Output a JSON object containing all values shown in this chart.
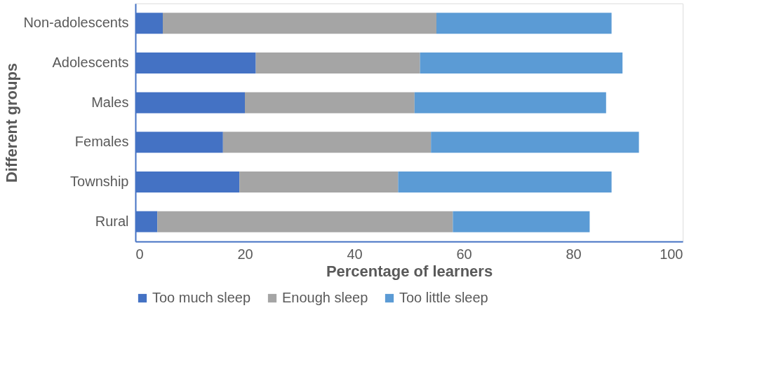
{
  "chart_data": {
    "type": "bar",
    "orientation": "horizontal",
    "stacked": true,
    "xlabel": "Percentage of learners",
    "ylabel": "Different groups",
    "categories": [
      "Non-adolescents",
      "Adolescents",
      "Males",
      "Females",
      "Township",
      "Rural"
    ],
    "series": [
      {
        "name": "Too much sleep",
        "color": "#4472c4",
        "values": [
          5,
          22,
          20,
          16,
          19,
          4
        ]
      },
      {
        "name": "Enough sleep",
        "color": "#a5a5a5",
        "values": [
          50,
          30,
          31,
          38,
          29,
          54
        ]
      },
      {
        "name": "Too little sleep",
        "color": "#5b9bd5",
        "values": [
          32,
          37,
          35,
          38,
          39,
          25
        ]
      }
    ],
    "xlim": [
      0,
      100
    ],
    "xticks": [
      0,
      20,
      40,
      60,
      80,
      100
    ],
    "grid": false,
    "legend": "bottom"
  }
}
